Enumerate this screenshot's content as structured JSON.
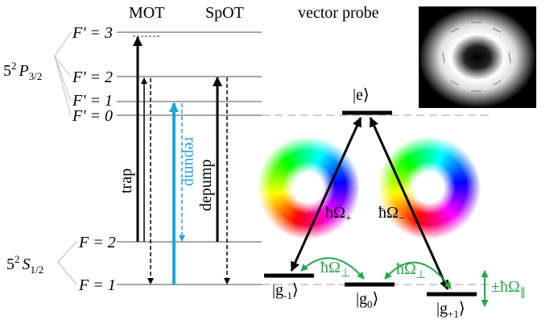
{
  "header": {
    "mot": "MOT",
    "spot": "SpOT",
    "probe": "vector probe"
  },
  "terms": {
    "p": {
      "prefix": "5",
      "sup": "2",
      "letter": "P",
      "sub": "3/2"
    },
    "s": {
      "prefix": "5",
      "sup": "2",
      "letter": "S",
      "sub": "1/2"
    }
  },
  "levels": {
    "excited": [
      "F' = 3",
      "F' = 2",
      "F' = 1",
      "F' = 0"
    ],
    "ground": [
      "F = 2",
      "F = 1"
    ]
  },
  "transitions": {
    "trap": "trap",
    "repump": "repump",
    "depump": "depump"
  },
  "states": {
    "e": "|e⟩",
    "g_minus": {
      "base": "|g",
      "sub": "-1",
      "close": "⟩"
    },
    "g_zero": {
      "base": "|g",
      "sub": "0",
      "close": "⟩"
    },
    "g_plus": {
      "base": "|g",
      "sub": "+1",
      "close": "⟩"
    }
  },
  "couplings": {
    "plus": {
      "base": "ħΩ",
      "sub": "+"
    },
    "minus": {
      "base": "ħΩ",
      "sub": "−"
    },
    "perp_left": {
      "base": "ħΩ",
      "sub": "⊥"
    },
    "perp_right": {
      "base": "ħΩ",
      "sub": "⊥"
    },
    "shift": {
      "base": "±ħΩ",
      "sub": "∥"
    }
  }
}
